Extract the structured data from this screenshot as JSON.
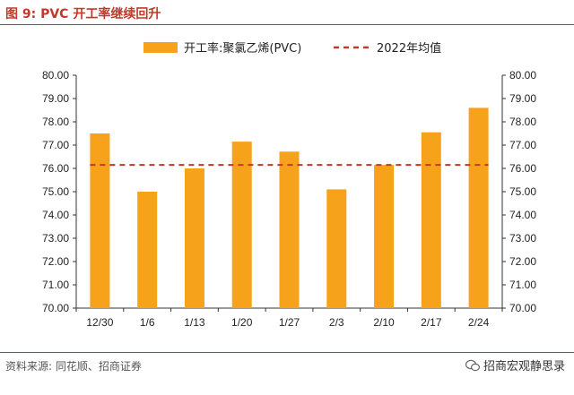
{
  "figure": {
    "title": "图 9:  PVC 开工率继续回升",
    "source": "资料来源:  同花顺、招商证券",
    "watermark": "招商宏观静思录",
    "watermark_icon": "wechat-icon"
  },
  "chart_data": {
    "type": "bar",
    "categories": [
      "12/30",
      "1/6",
      "1/13",
      "1/20",
      "1/27",
      "2/3",
      "2/10",
      "2/17",
      "2/24"
    ],
    "series": [
      {
        "name": "开工率:聚氯乙烯(PVC)",
        "type": "bar",
        "color": "#F7A21B",
        "values": [
          77.5,
          75.0,
          76.0,
          77.15,
          76.72,
          75.1,
          76.15,
          77.55,
          78.6
        ]
      },
      {
        "name": "2022年均值",
        "type": "line",
        "style": "dashed",
        "color": "#C0392B",
        "value": 76.15
      }
    ],
    "ylim": [
      70.0,
      80.0
    ],
    "ytick_step": 1.0,
    "yticks": [
      "70.00",
      "71.00",
      "72.00",
      "73.00",
      "74.00",
      "75.00",
      "76.00",
      "77.00",
      "78.00",
      "79.00",
      "80.00"
    ],
    "y2ticks": [
      "70.00",
      "71.00",
      "72.00",
      "73.00",
      "74.00",
      "75.00",
      "76.00",
      "77.00",
      "78.00",
      "79.00",
      "80.00"
    ],
    "legend_position": "top-center",
    "grid": false
  }
}
